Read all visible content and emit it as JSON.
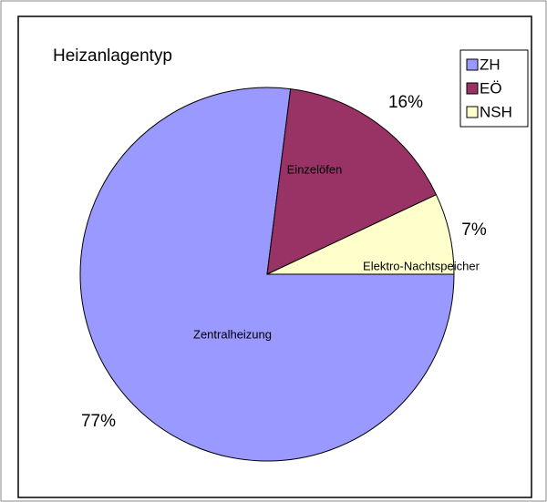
{
  "chart_data": {
    "type": "pie",
    "title": "Heizanlagentyp",
    "categories": [
      "ZH",
      "EÖ",
      "NSH"
    ],
    "slice_labels": [
      "Zentralheizung",
      "Einzelöfen",
      "Elektro-Nachtspeicher"
    ],
    "values": [
      77,
      16,
      7
    ],
    "value_labels": [
      "77%",
      "16%",
      "7%"
    ],
    "colors": [
      "#9999ff",
      "#993366",
      "#ffffcc"
    ],
    "legend": "top-right"
  }
}
